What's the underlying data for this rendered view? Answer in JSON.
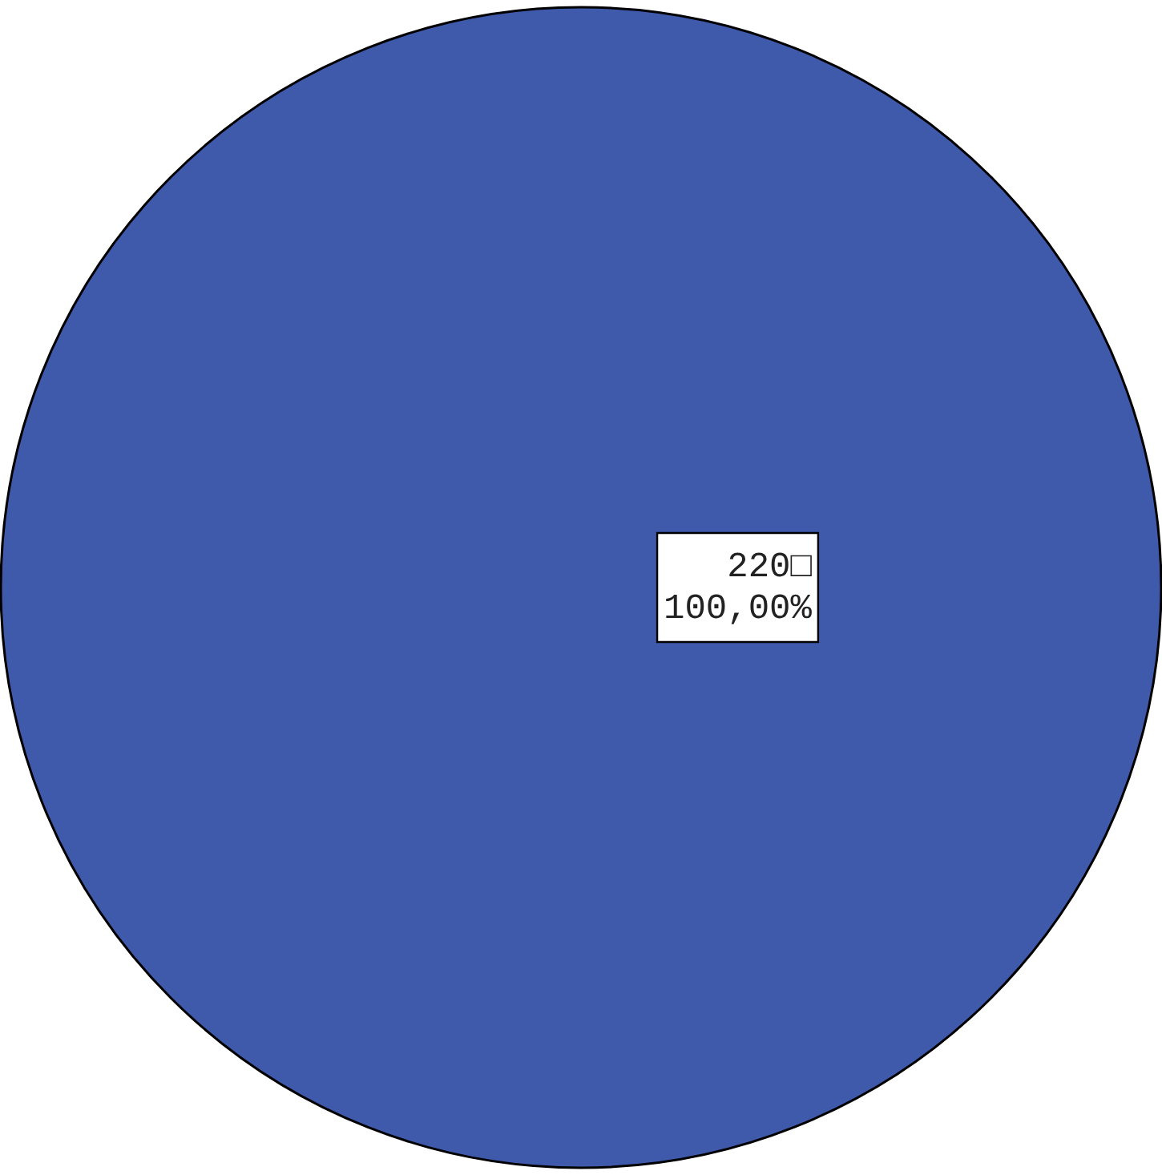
{
  "chart_data": {
    "type": "pie",
    "categories": [
      null
    ],
    "values": [
      220
    ],
    "colors": [
      "#3f59ab"
    ],
    "value_labels": [
      "220□\n100,00%"
    ],
    "legend": false
  }
}
